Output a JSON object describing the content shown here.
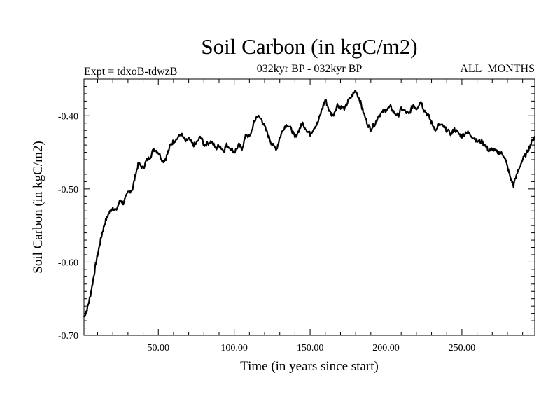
{
  "chart_data": {
    "type": "line",
    "title": "Soil Carbon (in kgC/m2)",
    "experiment": "Expt = tdxoB-tdwzB",
    "period": "032kyr BP - 032kyr BP",
    "months": "ALL_MONTHS",
    "xlabel": "Time (in years since start)",
    "ylabel": "Soil Carbon (in kgC/m2)",
    "xlim": [
      1,
      298
    ],
    "ylim": [
      -0.7,
      -0.35
    ],
    "x_ticks": [
      "50.00",
      "100.00",
      "150.00",
      "200.00",
      "250.00"
    ],
    "y_ticks": [
      "-0.40",
      "-0.50",
      "-0.60",
      "-0.70"
    ],
    "grid": false,
    "series_color": "#000000",
    "series": [
      {
        "x": [
          1,
          3,
          5,
          7,
          9,
          11,
          13,
          15,
          17,
          20,
          22,
          25,
          27,
          30,
          33,
          35,
          37,
          40,
          42,
          45,
          47,
          50,
          53,
          55,
          58,
          60,
          62,
          65,
          68,
          70,
          73,
          75,
          78,
          80,
          82,
          85,
          88,
          90,
          93,
          95,
          98,
          100,
          103,
          105,
          108,
          110,
          113,
          115,
          118,
          120,
          123,
          125,
          128,
          130,
          133,
          135,
          138,
          140,
          143,
          145,
          148,
          150,
          153,
          155,
          158,
          160,
          163,
          165,
          168,
          170,
          173,
          175,
          178,
          180,
          183,
          185,
          188,
          190,
          193,
          195,
          198,
          200,
          203,
          205,
          208,
          210,
          213,
          215,
          218,
          220,
          223,
          225,
          228,
          230,
          233,
          235,
          238,
          240,
          243,
          245,
          248,
          250,
          253,
          255,
          258,
          260,
          263,
          265,
          268,
          270,
          273,
          275,
          278,
          280,
          282,
          284,
          287,
          290,
          293,
          295,
          298
        ],
        "y": [
          -0.675,
          -0.665,
          -0.648,
          -0.625,
          -0.6,
          -0.58,
          -0.56,
          -0.545,
          -0.535,
          -0.525,
          -0.53,
          -0.515,
          -0.52,
          -0.505,
          -0.5,
          -0.48,
          -0.465,
          -0.472,
          -0.462,
          -0.455,
          -0.445,
          -0.45,
          -0.462,
          -0.458,
          -0.44,
          -0.435,
          -0.432,
          -0.425,
          -0.435,
          -0.432,
          -0.44,
          -0.438,
          -0.428,
          -0.44,
          -0.438,
          -0.435,
          -0.445,
          -0.44,
          -0.448,
          -0.44,
          -0.445,
          -0.45,
          -0.44,
          -0.445,
          -0.425,
          -0.43,
          -0.41,
          -0.4,
          -0.405,
          -0.415,
          -0.43,
          -0.44,
          -0.445,
          -0.43,
          -0.415,
          -0.412,
          -0.42,
          -0.43,
          -0.418,
          -0.41,
          -0.42,
          -0.425,
          -0.415,
          -0.41,
          -0.39,
          -0.378,
          -0.395,
          -0.4,
          -0.385,
          -0.388,
          -0.39,
          -0.38,
          -0.372,
          -0.365,
          -0.38,
          -0.395,
          -0.412,
          -0.418,
          -0.41,
          -0.4,
          -0.395,
          -0.392,
          -0.388,
          -0.395,
          -0.4,
          -0.39,
          -0.395,
          -0.398,
          -0.385,
          -0.39,
          -0.38,
          -0.392,
          -0.4,
          -0.41,
          -0.42,
          -0.412,
          -0.415,
          -0.42,
          -0.425,
          -0.418,
          -0.425,
          -0.428,
          -0.422,
          -0.425,
          -0.43,
          -0.435,
          -0.435,
          -0.44,
          -0.448,
          -0.445,
          -0.45,
          -0.45,
          -0.455,
          -0.47,
          -0.485,
          -0.495,
          -0.475,
          -0.46,
          -0.45,
          -0.44,
          -0.428
        ]
      }
    ]
  }
}
